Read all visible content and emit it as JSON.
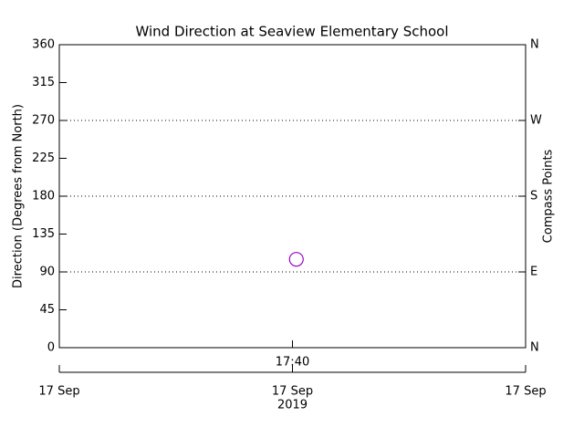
{
  "chart_data": {
    "type": "scatter",
    "title": "Wind Direction at Seaview Elementary School",
    "y_label": "Direction (Degrees from North)",
    "y2_label": "Compass Points",
    "x": [
      1061
    ],
    "values": [
      105
    ],
    "color": "#9900cc",
    "xlim": [
      1000,
      1120
    ],
    "xticks": [
      {
        "value": 1060,
        "label": "17:40"
      }
    ],
    "date_ticks": [
      {
        "value": 1000,
        "label": "17 Sep"
      },
      {
        "value": 1060,
        "label": "17 Sep"
      },
      {
        "value": 1120,
        "label": "17 Sep"
      }
    ],
    "year": "2019",
    "ylim": [
      0,
      360
    ],
    "yticks": [
      0,
      45,
      90,
      135,
      180,
      225,
      270,
      315,
      360
    ],
    "y2lim": [
      0,
      360
    ],
    "y2ticks": [
      {
        "value": 0,
        "label": "N"
      },
      {
        "value": 90,
        "label": "E"
      },
      {
        "value": 180,
        "label": "S"
      },
      {
        "value": 270,
        "label": "W"
      },
      {
        "value": 360,
        "label": "N"
      }
    ],
    "grid": true
  }
}
